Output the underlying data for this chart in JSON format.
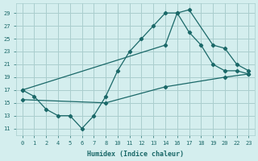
{
  "xlabel": "Humidex (Indice chaleur)",
  "background_color": "#d4eeee",
  "grid_color": "#aacece",
  "line_color": "#1a6868",
  "xtick_labels": [
    "0",
    "1",
    "2",
    "4",
    "5",
    "6",
    "7",
    "8",
    "10",
    "11",
    "12",
    "13",
    "14",
    "16",
    "17",
    "18",
    "19",
    "20",
    "22",
    "23"
  ],
  "yticks": [
    11,
    13,
    15,
    17,
    19,
    21,
    23,
    25,
    27,
    29
  ],
  "ylim": [
    10.0,
    30.5
  ],
  "xlim": [
    -0.5,
    19.5
  ],
  "main_line_x": [
    0,
    1,
    2,
    3,
    4,
    5,
    6,
    7,
    8,
    9,
    10,
    11,
    12,
    13,
    14,
    15,
    16,
    17,
    18,
    19
  ],
  "main_line_y": [
    17,
    16,
    14,
    13,
    13,
    11,
    13,
    16,
    20,
    23,
    25,
    27,
    29,
    29,
    26,
    24,
    21,
    20,
    20,
    19.5
  ],
  "line2_x": [
    0,
    12,
    13,
    14,
    16,
    17,
    18,
    19
  ],
  "line2_y": [
    17,
    24,
    29,
    29.5,
    24,
    23.5,
    21,
    20
  ],
  "line3_x": [
    0,
    7,
    12,
    17,
    19
  ],
  "line3_y": [
    15.5,
    15,
    17.5,
    19,
    19.5
  ]
}
